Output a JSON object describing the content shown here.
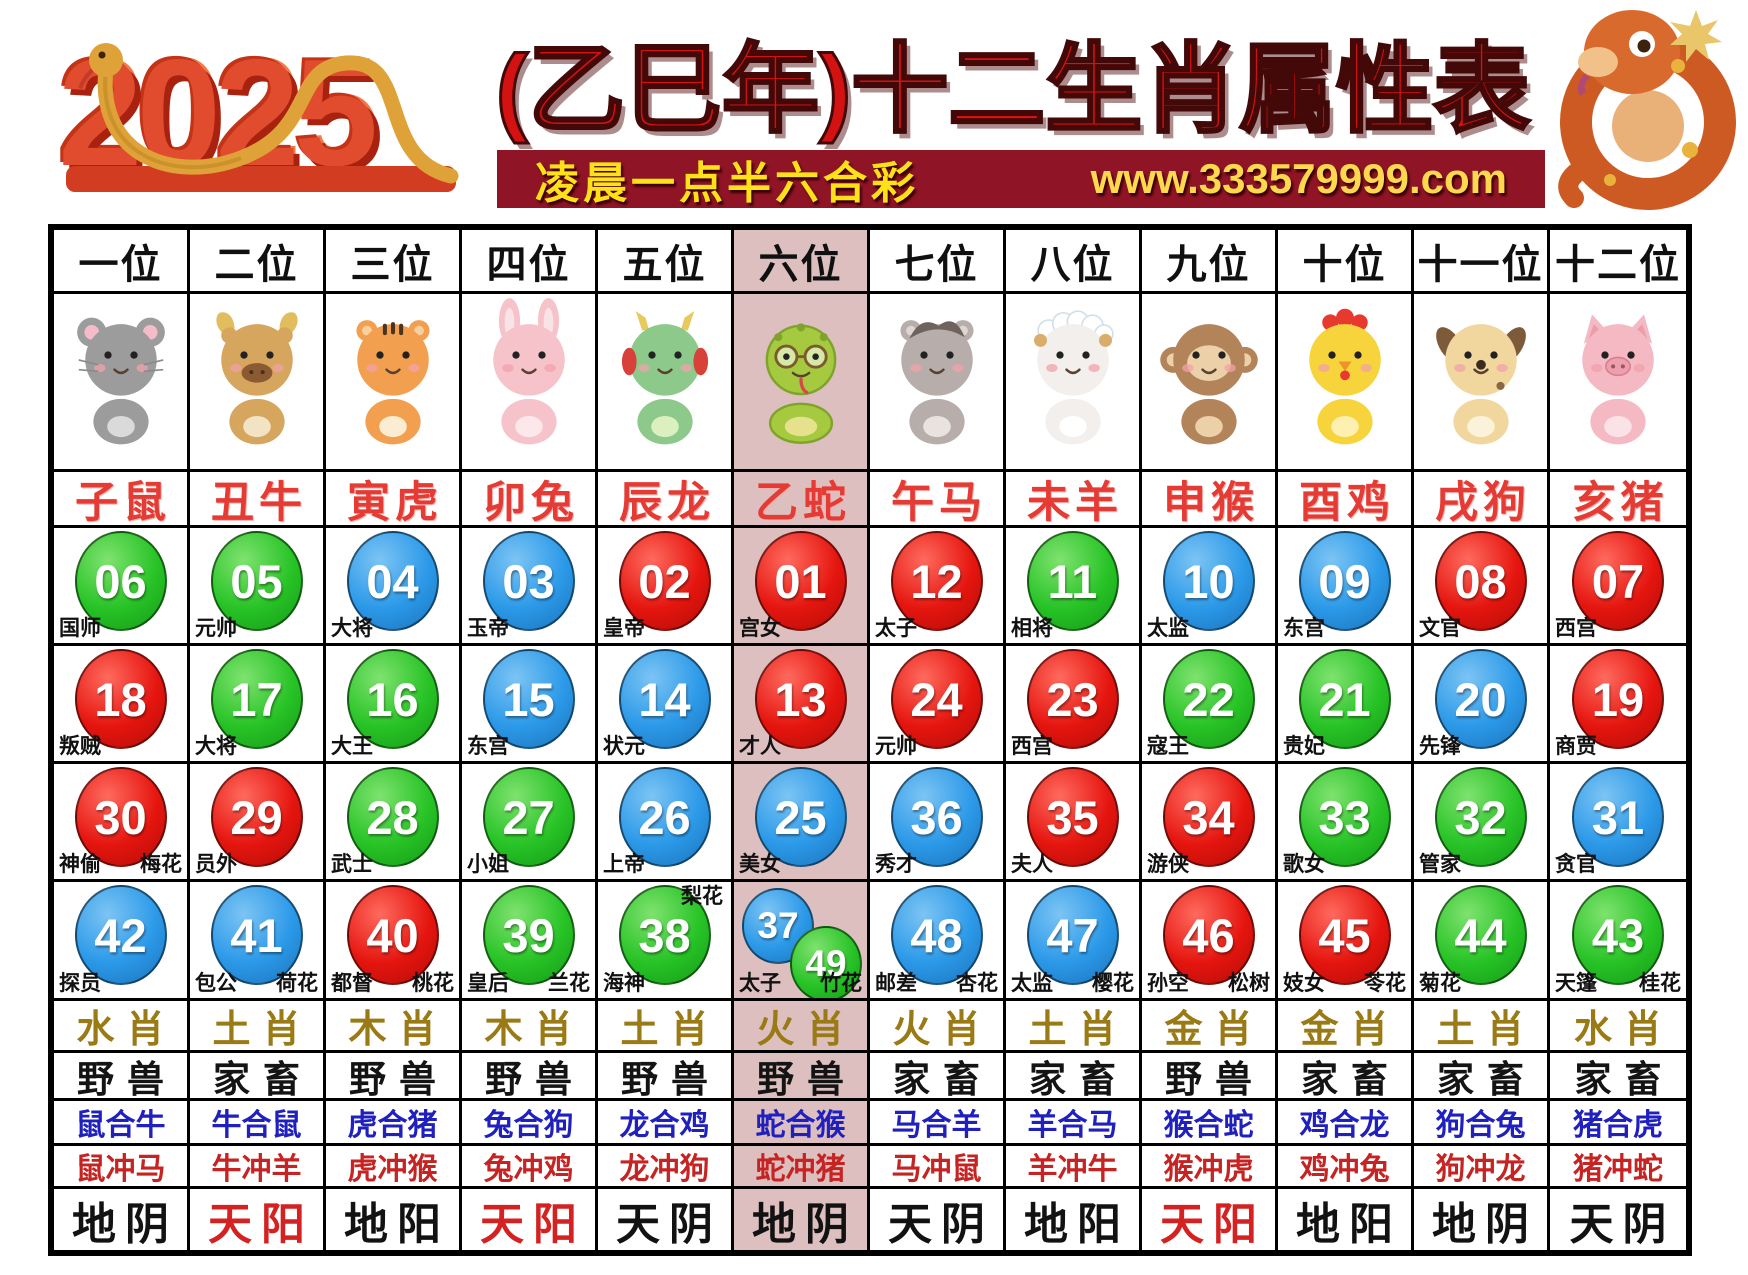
{
  "header": {
    "year": "2025",
    "title": "(乙巳年)十二生肖属性表",
    "banner_left": "凌晨一点半六合彩",
    "banner_url": "www.333579999.com",
    "year_graphic_icon": "golden-snake-icon",
    "mascot_icon": "snake-mascot-icon"
  },
  "colors": {
    "ball_red": "#e5150f",
    "ball_blue": "#2b99e8",
    "ball_green": "#27c326",
    "highlight_column": "#ddbfbf",
    "banner_bg": "#8e1426",
    "banner_text": "#ffe11a",
    "zodiac_text": "#e43b35",
    "element_text": "#9a7a15",
    "combine_text": "#2020bf",
    "clash_text": "#c62323",
    "yang_red_text": "#d42121"
  },
  "columns": [
    {
      "position": "一位",
      "zodiac": "子鼠",
      "animal": "rat",
      "animal_icon": "rat-icon",
      "highlight": false,
      "cells": [
        {
          "balls": [
            {
              "n": "06",
              "c": "green"
            }
          ],
          "left": "国师"
        },
        {
          "balls": [
            {
              "n": "18",
              "c": "red"
            }
          ],
          "left": "叛贼"
        },
        {
          "balls": [
            {
              "n": "30",
              "c": "red"
            }
          ],
          "left": "神偷",
          "right": "梅花"
        },
        {
          "balls": [
            {
              "n": "42",
              "c": "blue"
            }
          ],
          "left": "探员"
        }
      ],
      "element": "水肖",
      "kind": "野兽",
      "combine": "鼠合牛",
      "clash": "鼠冲马",
      "yinyang": "地阴",
      "yinyang_red": false
    },
    {
      "position": "二位",
      "zodiac": "丑牛",
      "animal": "ox",
      "animal_icon": "ox-icon",
      "highlight": false,
      "cells": [
        {
          "balls": [
            {
              "n": "05",
              "c": "green"
            }
          ],
          "left": "元帅"
        },
        {
          "balls": [
            {
              "n": "17",
              "c": "green"
            }
          ],
          "left": "大将"
        },
        {
          "balls": [
            {
              "n": "29",
              "c": "red"
            }
          ],
          "left": "员外"
        },
        {
          "balls": [
            {
              "n": "41",
              "c": "blue"
            }
          ],
          "left": "包公",
          "right": "荷花"
        }
      ],
      "element": "土肖",
      "kind": "家畜",
      "combine": "牛合鼠",
      "clash": "牛冲羊",
      "yinyang": "天阳",
      "yinyang_red": true
    },
    {
      "position": "三位",
      "zodiac": "寅虎",
      "animal": "tiger",
      "animal_icon": "tiger-icon",
      "highlight": false,
      "cells": [
        {
          "balls": [
            {
              "n": "04",
              "c": "blue"
            }
          ],
          "left": "大将"
        },
        {
          "balls": [
            {
              "n": "16",
              "c": "green"
            }
          ],
          "left": "大王"
        },
        {
          "balls": [
            {
              "n": "28",
              "c": "green"
            }
          ],
          "left": "武士"
        },
        {
          "balls": [
            {
              "n": "40",
              "c": "red"
            }
          ],
          "left": "都督",
          "right": "桃花"
        }
      ],
      "element": "木肖",
      "kind": "野兽",
      "combine": "虎合猪",
      "clash": "虎冲猴",
      "yinyang": "地阳",
      "yinyang_red": false
    },
    {
      "position": "四位",
      "zodiac": "卯兔",
      "animal": "rabbit",
      "animal_icon": "rabbit-icon",
      "highlight": false,
      "cells": [
        {
          "balls": [
            {
              "n": "03",
              "c": "blue"
            }
          ],
          "left": "玉帝"
        },
        {
          "balls": [
            {
              "n": "15",
              "c": "blue"
            }
          ],
          "left": "东宫"
        },
        {
          "balls": [
            {
              "n": "27",
              "c": "green"
            }
          ],
          "left": "小姐"
        },
        {
          "balls": [
            {
              "n": "39",
              "c": "green"
            }
          ],
          "left": "皇后",
          "right": "兰花"
        }
      ],
      "element": "木肖",
      "kind": "野兽",
      "combine": "兔合狗",
      "clash": "兔冲鸡",
      "yinyang": "天阳",
      "yinyang_red": true
    },
    {
      "position": "五位",
      "zodiac": "辰龙",
      "animal": "dragon",
      "animal_icon": "dragon-icon",
      "highlight": false,
      "cells": [
        {
          "balls": [
            {
              "n": "02",
              "c": "red"
            }
          ],
          "left": "皇帝"
        },
        {
          "balls": [
            {
              "n": "14",
              "c": "blue"
            }
          ],
          "left": "状元"
        },
        {
          "balls": [
            {
              "n": "26",
              "c": "blue"
            }
          ],
          "left": "上帝"
        },
        {
          "balls": [
            {
              "n": "38",
              "c": "green"
            }
          ],
          "left": "海神",
          "right": "梨花",
          "right_top": true
        }
      ],
      "element": "土肖",
      "kind": "野兽",
      "combine": "龙合鸡",
      "clash": "龙冲狗",
      "yinyang": "天阴",
      "yinyang_red": false
    },
    {
      "position": "六位",
      "zodiac": "乙蛇",
      "animal": "snake",
      "animal_icon": "snake-icon",
      "highlight": true,
      "cells": [
        {
          "balls": [
            {
              "n": "01",
              "c": "red"
            }
          ],
          "left": "宫女"
        },
        {
          "balls": [
            {
              "n": "13",
              "c": "red"
            }
          ],
          "left": "才人"
        },
        {
          "balls": [
            {
              "n": "25",
              "c": "blue"
            }
          ],
          "left": "美女"
        },
        {
          "balls": [
            {
              "n": "37",
              "c": "blue"
            },
            {
              "n": "49",
              "c": "green"
            }
          ],
          "left": "太子",
          "right": "竹花"
        }
      ],
      "element": "火肖",
      "kind": "野兽",
      "combine": "蛇合猴",
      "clash": "蛇冲猪",
      "yinyang": "地阴",
      "yinyang_red": false
    },
    {
      "position": "七位",
      "zodiac": "午马",
      "animal": "horse",
      "animal_icon": "horse-icon",
      "highlight": false,
      "cells": [
        {
          "balls": [
            {
              "n": "12",
              "c": "red"
            }
          ],
          "left": "太子"
        },
        {
          "balls": [
            {
              "n": "24",
              "c": "red"
            }
          ],
          "left": "元帅"
        },
        {
          "balls": [
            {
              "n": "36",
              "c": "blue"
            }
          ],
          "left": "秀才"
        },
        {
          "balls": [
            {
              "n": "48",
              "c": "blue"
            }
          ],
          "left": "邮差",
          "right": "杏花"
        }
      ],
      "element": "火肖",
      "kind": "家畜",
      "combine": "马合羊",
      "clash": "马冲鼠",
      "yinyang": "天阴",
      "yinyang_red": false
    },
    {
      "position": "八位",
      "zodiac": "未羊",
      "animal": "sheep",
      "animal_icon": "sheep-icon",
      "highlight": false,
      "cells": [
        {
          "balls": [
            {
              "n": "11",
              "c": "green"
            }
          ],
          "left": "相将"
        },
        {
          "balls": [
            {
              "n": "23",
              "c": "red"
            }
          ],
          "left": "西宫"
        },
        {
          "balls": [
            {
              "n": "35",
              "c": "red"
            }
          ],
          "left": "夫人"
        },
        {
          "balls": [
            {
              "n": "47",
              "c": "blue"
            }
          ],
          "left": "太监",
          "right": "樱花"
        }
      ],
      "element": "土肖",
      "kind": "家畜",
      "combine": "羊合马",
      "clash": "羊冲牛",
      "yinyang": "地阳",
      "yinyang_red": false
    },
    {
      "position": "九位",
      "zodiac": "申猴",
      "animal": "monkey",
      "animal_icon": "monkey-icon",
      "highlight": false,
      "cells": [
        {
          "balls": [
            {
              "n": "10",
              "c": "blue"
            }
          ],
          "left": "太监"
        },
        {
          "balls": [
            {
              "n": "22",
              "c": "green"
            }
          ],
          "left": "寇王"
        },
        {
          "balls": [
            {
              "n": "34",
              "c": "red"
            }
          ],
          "left": "游侠"
        },
        {
          "balls": [
            {
              "n": "46",
              "c": "red"
            }
          ],
          "left": "孙空",
          "right": "松树"
        }
      ],
      "element": "金肖",
      "kind": "野兽",
      "combine": "猴合蛇",
      "clash": "猴冲虎",
      "yinyang": "天阳",
      "yinyang_red": true
    },
    {
      "position": "十位",
      "zodiac": "酉鸡",
      "animal": "rooster",
      "animal_icon": "rooster-icon",
      "highlight": false,
      "cells": [
        {
          "balls": [
            {
              "n": "09",
              "c": "blue"
            }
          ],
          "left": "东宫"
        },
        {
          "balls": [
            {
              "n": "21",
              "c": "green"
            }
          ],
          "left": "贵妃"
        },
        {
          "balls": [
            {
              "n": "33",
              "c": "green"
            }
          ],
          "left": "歌女"
        },
        {
          "balls": [
            {
              "n": "45",
              "c": "red"
            }
          ],
          "left": "妓女",
          "right": "苓花"
        }
      ],
      "element": "金肖",
      "kind": "家畜",
      "combine": "鸡合龙",
      "clash": "鸡冲兔",
      "yinyang": "地阳",
      "yinyang_red": false
    },
    {
      "position": "十一位",
      "zodiac": "戌狗",
      "animal": "dog",
      "animal_icon": "dog-icon",
      "highlight": false,
      "cells": [
        {
          "balls": [
            {
              "n": "08",
              "c": "red"
            }
          ],
          "left": "文官"
        },
        {
          "balls": [
            {
              "n": "20",
              "c": "blue"
            }
          ],
          "left": "先锋"
        },
        {
          "balls": [
            {
              "n": "32",
              "c": "green"
            }
          ],
          "left": "管家"
        },
        {
          "balls": [
            {
              "n": "44",
              "c": "green"
            }
          ],
          "left": "菊花"
        }
      ],
      "element": "土肖",
      "kind": "家畜",
      "combine": "狗合兔",
      "clash": "狗冲龙",
      "yinyang": "地阴",
      "yinyang_red": false
    },
    {
      "position": "十二位",
      "zodiac": "亥猪",
      "animal": "pig",
      "animal_icon": "pig-icon",
      "highlight": false,
      "cells": [
        {
          "balls": [
            {
              "n": "07",
              "c": "red"
            }
          ],
          "left": "西宫"
        },
        {
          "balls": [
            {
              "n": "19",
              "c": "red"
            }
          ],
          "left": "商贾"
        },
        {
          "balls": [
            {
              "n": "31",
              "c": "blue"
            }
          ],
          "left": "贪官"
        },
        {
          "balls": [
            {
              "n": "43",
              "c": "green"
            }
          ],
          "left": "天篷",
          "right": "桂花"
        }
      ],
      "element": "水肖",
      "kind": "家畜",
      "combine": "猪合虎",
      "clash": "猪冲蛇",
      "yinyang": "天阴",
      "yinyang_red": false
    }
  ]
}
